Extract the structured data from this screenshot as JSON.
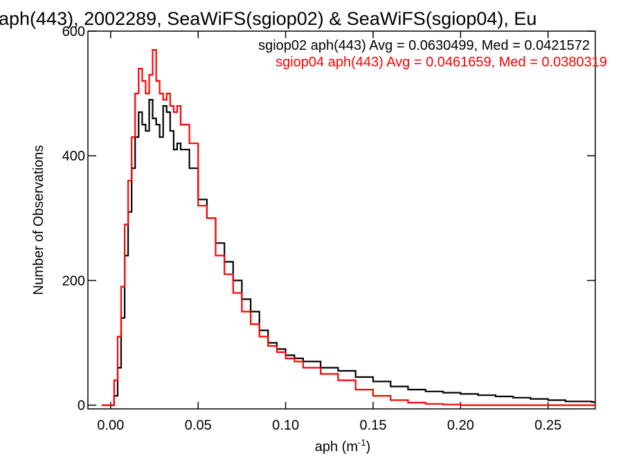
{
  "chart_data": {
    "type": "line",
    "title": "aph(443), 2002289, SeaWiFS(sgiop02) & SeaWiFS(sgiop04), Eu",
    "xlabel": "aph (m",
    "xlabel_sup": "-1",
    "xlabel_close": ")",
    "ylabel": "Number of Observations",
    "xlim": [
      -0.013,
      0.277
    ],
    "ylim": [
      -6,
      600
    ],
    "x_ticks": [
      0.0,
      0.05,
      0.1,
      0.15,
      0.2,
      0.25
    ],
    "x_tick_labels": [
      "0.00",
      "0.05",
      "0.10",
      "0.15",
      "0.20",
      "0.25"
    ],
    "y_ticks": [
      0,
      200,
      400,
      600
    ],
    "y_tick_labels": [
      "0",
      "200",
      "400",
      "600"
    ],
    "stats": [
      {
        "text": "sgiop02 aph(443) Avg = 0.0630499, Med = 0.0421572",
        "color": "#000000"
      },
      {
        "text": "sgiop04 aph(443) Avg = 0.0461659, Med = 0.0380319",
        "color": "#ff0000"
      }
    ],
    "series": [
      {
        "color": "#000000",
        "x": [
          -0.005,
          0.0,
          0.002,
          0.004,
          0.006,
          0.008,
          0.01,
          0.012,
          0.014,
          0.016,
          0.018,
          0.02,
          0.022,
          0.024,
          0.026,
          0.028,
          0.03,
          0.032,
          0.034,
          0.036,
          0.038,
          0.04,
          0.045,
          0.05,
          0.055,
          0.06,
          0.065,
          0.07,
          0.075,
          0.08,
          0.085,
          0.09,
          0.095,
          0.1,
          0.105,
          0.11,
          0.12,
          0.13,
          0.14,
          0.15,
          0.16,
          0.17,
          0.18,
          0.19,
          0.2,
          0.21,
          0.22,
          0.23,
          0.24,
          0.25,
          0.26,
          0.275
        ],
        "y": [
          0,
          0,
          15,
          60,
          140,
          240,
          310,
          380,
          430,
          470,
          450,
          440,
          490,
          460,
          450,
          430,
          480,
          470,
          440,
          410,
          420,
          410,
          380,
          330,
          300,
          260,
          230,
          200,
          170,
          150,
          120,
          100,
          90,
          80,
          75,
          70,
          60,
          55,
          45,
          38,
          30,
          25,
          22,
          20,
          18,
          16,
          14,
          12,
          10,
          8,
          6,
          5
        ]
      },
      {
        "color": "#ff0000",
        "x": [
          -0.005,
          0.0,
          0.002,
          0.004,
          0.006,
          0.008,
          0.01,
          0.012,
          0.014,
          0.016,
          0.018,
          0.02,
          0.022,
          0.024,
          0.026,
          0.028,
          0.03,
          0.032,
          0.034,
          0.036,
          0.038,
          0.04,
          0.045,
          0.05,
          0.055,
          0.06,
          0.065,
          0.07,
          0.075,
          0.08,
          0.085,
          0.09,
          0.095,
          0.1,
          0.105,
          0.11,
          0.12,
          0.13,
          0.14,
          0.15,
          0.16,
          0.17,
          0.18,
          0.19,
          0.2,
          0.21,
          0.22,
          0.23,
          0.24,
          0.25,
          0.26,
          0.275
        ],
        "y": [
          0,
          0,
          40,
          110,
          190,
          290,
          360,
          430,
          500,
          540,
          520,
          500,
          530,
          570,
          520,
          500,
          490,
          500,
          480,
          470,
          480,
          450,
          420,
          320,
          300,
          240,
          210,
          180,
          150,
          130,
          110,
          95,
          85,
          75,
          70,
          60,
          50,
          40,
          25,
          15,
          8,
          4,
          2,
          1,
          0,
          0,
          0,
          0,
          0,
          0,
          0,
          0
        ]
      }
    ]
  }
}
